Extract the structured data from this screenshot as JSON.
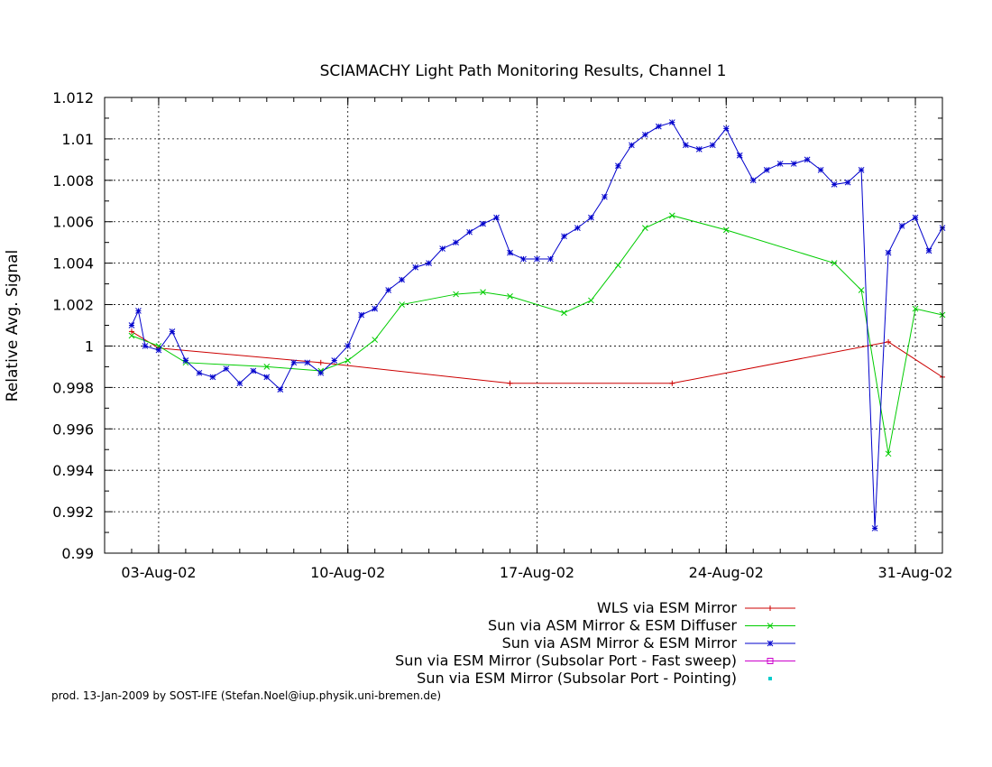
{
  "chart_data": {
    "type": "line",
    "title": "SCIAMACHY Light Path Monitoring Results, Channel 1",
    "xlabel": "",
    "ylabel": "Relative Avg. Signal",
    "xlim": [
      "2002-08-01T00:00",
      "2002-09-01T00:00"
    ],
    "ylim": [
      0.99,
      1.012
    ],
    "yticks": [
      0.99,
      0.992,
      0.994,
      0.996,
      0.998,
      1,
      1.002,
      1.004,
      1.006,
      1.008,
      1.01,
      1.012
    ],
    "ytick_labels": [
      "0.99",
      "0.992",
      "0.994",
      "0.996",
      "0.998",
      "1",
      "1.002",
      "1.004",
      "1.006",
      "1.008",
      "1.01",
      "1.012"
    ],
    "xticks": [
      "2002-08-03",
      "2002-08-10",
      "2002-08-17",
      "2002-08-24",
      "2002-08-31"
    ],
    "xtick_labels": [
      "03-Aug-02",
      "10-Aug-02",
      "17-Aug-02",
      "24-Aug-02",
      "31-Aug-02"
    ],
    "grid": true,
    "legend_position": "bottom-right",
    "series": [
      {
        "name": "WLS via ESM Mirror",
        "color": "#cc0000",
        "marker": "plus",
        "x": [
          "2002-08-02T00:00",
          "2002-08-03T00:00",
          "2002-08-09T00:00",
          "2002-08-16T00:00",
          "2002-08-22T00:00",
          "2002-08-30T00:00",
          "2002-09-01T00:00"
        ],
        "y": [
          1.0007,
          0.9999,
          0.9992,
          0.9982,
          0.9982,
          1.0002,
          0.9985
        ]
      },
      {
        "name": "Sun via ASM Mirror & ESM Diffuser",
        "color": "#00cc00",
        "marker": "cross",
        "x": [
          "2002-08-02T00:00",
          "2002-08-03T00:00",
          "2002-08-04T00:00",
          "2002-08-07T00:00",
          "2002-08-09T00:00",
          "2002-08-10T00:00",
          "2002-08-11T00:00",
          "2002-08-12T00:00",
          "2002-08-14T00:00",
          "2002-08-15T00:00",
          "2002-08-16T00:00",
          "2002-08-18T00:00",
          "2002-08-19T00:00",
          "2002-08-20T00:00",
          "2002-08-21T00:00",
          "2002-08-22T00:00",
          "2002-08-24T00:00",
          "2002-08-28T00:00",
          "2002-08-29T00:00",
          "2002-08-30T00:00",
          "2002-08-31T00:00",
          "2002-09-01T00:00"
        ],
        "y": [
          1.0005,
          1.0,
          0.9992,
          0.999,
          0.9988,
          0.9993,
          1.0003,
          1.002,
          1.0025,
          1.0026,
          1.0024,
          1.0016,
          1.0022,
          1.0039,
          1.0057,
          1.0063,
          1.0056,
          1.004,
          1.0027,
          0.9948,
          1.0018,
          1.0015
        ]
      },
      {
        "name": "Sun via ASM Mirror & ESM Mirror",
        "color": "#0000cc",
        "marker": "star",
        "x": [
          "2002-08-02T00:00",
          "2002-08-02T06:00",
          "2002-08-02T12:00",
          "2002-08-03T00:00",
          "2002-08-03T12:00",
          "2002-08-04T00:00",
          "2002-08-04T12:00",
          "2002-08-05T00:00",
          "2002-08-05T12:00",
          "2002-08-06T00:00",
          "2002-08-06T12:00",
          "2002-08-07T00:00",
          "2002-08-07T12:00",
          "2002-08-08T00:00",
          "2002-08-08T12:00",
          "2002-08-09T00:00",
          "2002-08-09T12:00",
          "2002-08-10T00:00",
          "2002-08-10T12:00",
          "2002-08-11T00:00",
          "2002-08-11T12:00",
          "2002-08-12T00:00",
          "2002-08-12T12:00",
          "2002-08-13T00:00",
          "2002-08-13T12:00",
          "2002-08-14T00:00",
          "2002-08-14T12:00",
          "2002-08-15T00:00",
          "2002-08-15T12:00",
          "2002-08-16T00:00",
          "2002-08-16T12:00",
          "2002-08-17T00:00",
          "2002-08-17T12:00",
          "2002-08-18T00:00",
          "2002-08-18T12:00",
          "2002-08-19T00:00",
          "2002-08-19T12:00",
          "2002-08-20T00:00",
          "2002-08-20T12:00",
          "2002-08-21T00:00",
          "2002-08-21T12:00",
          "2002-08-22T00:00",
          "2002-08-22T12:00",
          "2002-08-23T00:00",
          "2002-08-23T12:00",
          "2002-08-24T00:00",
          "2002-08-24T12:00",
          "2002-08-25T00:00",
          "2002-08-25T12:00",
          "2002-08-26T00:00",
          "2002-08-26T12:00",
          "2002-08-27T00:00",
          "2002-08-27T12:00",
          "2002-08-28T00:00",
          "2002-08-28T12:00",
          "2002-08-29T00:00",
          "2002-08-29T12:00",
          "2002-08-30T00:00",
          "2002-08-30T12:00",
          "2002-08-31T00:00",
          "2002-08-31T12:00",
          "2002-09-01T00:00"
        ],
        "y": [
          1.001,
          1.0017,
          1.0,
          0.9998,
          1.0007,
          0.9993,
          0.9987,
          0.9985,
          0.9989,
          0.9982,
          0.9988,
          0.9985,
          0.9979,
          0.9992,
          0.9992,
          0.9987,
          0.9993,
          1.0,
          1.0015,
          1.0018,
          1.0027,
          1.0032,
          1.0038,
          1.004,
          1.0047,
          1.005,
          1.0055,
          1.0059,
          1.0062,
          1.0045,
          1.0042,
          1.0042,
          1.0042,
          1.0053,
          1.0057,
          1.0062,
          1.0072,
          1.0087,
          1.0097,
          1.0102,
          1.0106,
          1.0108,
          1.0097,
          1.0095,
          1.0097,
          1.0105,
          1.0092,
          1.008,
          1.0085,
          1.0088,
          1.0088,
          1.009,
          1.0085,
          1.0078,
          1.0079,
          1.0085,
          0.9912,
          1.0045,
          1.0058,
          1.0062,
          1.0046,
          1.0057
        ]
      },
      {
        "name": "Sun via ESM Mirror (Subsolar Port - Fast sweep)",
        "color": "#cc00cc",
        "marker": "square",
        "x": [],
        "y": []
      },
      {
        "name": "Sun via ESM Mirror (Subsolar Port - Pointing)",
        "color": "#00cccc",
        "marker": "dot",
        "x": [],
        "y": []
      }
    ]
  },
  "footer": "prod. 13-Jan-2009 by SOST-IFE (Stefan.Noel@iup.physik.uni-bremen.de)"
}
